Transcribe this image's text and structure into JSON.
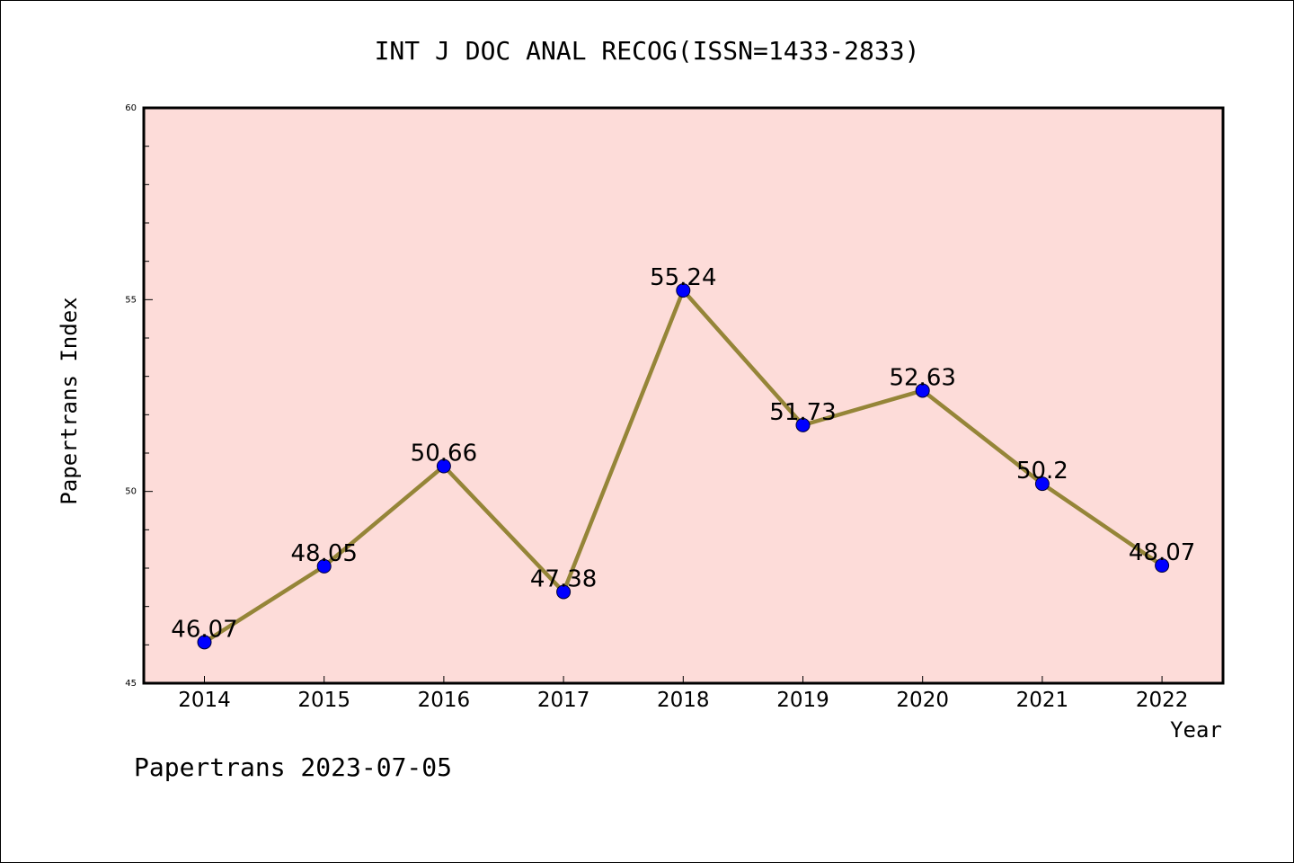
{
  "title": "INT J DOC ANAL RECOG(ISSN=1433-2833)",
  "footer": "Papertrans 2023-07-05",
  "colors": {
    "plot_background": "#fddcd9",
    "line": "#958538",
    "marker": "#0000ff"
  },
  "chart_data": {
    "type": "line",
    "title": "INT J DOC ANAL RECOG(ISSN=1433-2833)",
    "xlabel": "Year",
    "ylabel": "Papertrans Index",
    "categories": [
      "2014",
      "2015",
      "2016",
      "2017",
      "2018",
      "2019",
      "2020",
      "2021",
      "2022"
    ],
    "values": [
      46.07,
      48.05,
      50.66,
      47.38,
      55.24,
      51.73,
      52.63,
      50.2,
      48.07
    ],
    "data_labels": [
      "46.07",
      "48.05",
      "50.66",
      "47.38",
      "55.24",
      "51.73",
      "52.63",
      "50.2",
      "48.07"
    ],
    "ylim": [
      45,
      60
    ],
    "yticks": [
      "45",
      "50",
      "55",
      "60"
    ],
    "grid": false,
    "legend": "none"
  }
}
